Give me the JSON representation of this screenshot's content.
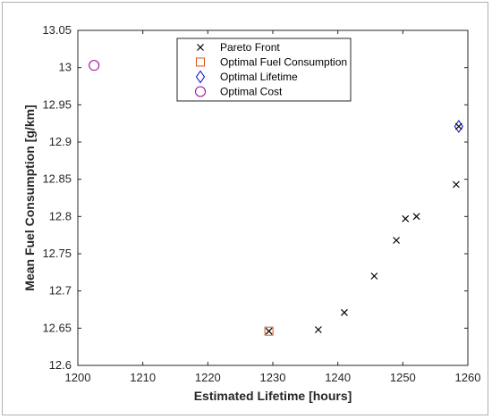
{
  "chart_data": {
    "type": "scatter",
    "xlabel": "Estimated Lifetime [hours]",
    "ylabel": "Mean Fuel Consumption [g/km]",
    "xlim": [
      1200,
      1260
    ],
    "ylim": [
      12.6,
      13.05
    ],
    "xticks": [
      "1200",
      "1210",
      "1220",
      "1230",
      "1240",
      "1250",
      "1260"
    ],
    "yticks": [
      "12.6",
      "12.65",
      "12.7",
      "12.75",
      "12.8",
      "12.85",
      "12.9",
      "12.95",
      "13",
      "13.05"
    ],
    "grid": false,
    "legend_position": "top-center",
    "series": [
      {
        "name": "Pareto Front",
        "marker": "x",
        "color": "#000000",
        "points": [
          [
            1229.4,
            12.646
          ],
          [
            1237.0,
            12.648
          ],
          [
            1241.0,
            12.671
          ],
          [
            1245.6,
            12.72
          ],
          [
            1249.0,
            12.768
          ],
          [
            1250.4,
            12.797
          ],
          [
            1252.1,
            12.8
          ],
          [
            1258.2,
            12.843
          ],
          [
            1258.6,
            12.921
          ]
        ]
      },
      {
        "name": "Optimal Fuel Consumption",
        "marker": "square",
        "color": "#D95319",
        "points": [
          [
            1229.4,
            12.646
          ]
        ]
      },
      {
        "name": "Optimal Lifetime",
        "marker": "diamond",
        "color": "#0000CC",
        "points": [
          [
            1258.6,
            12.921
          ]
        ]
      },
      {
        "name": "Optimal Cost",
        "marker": "circle",
        "color": "#9B009B",
        "points": [
          [
            1202.5,
            13.003
          ]
        ]
      }
    ]
  }
}
